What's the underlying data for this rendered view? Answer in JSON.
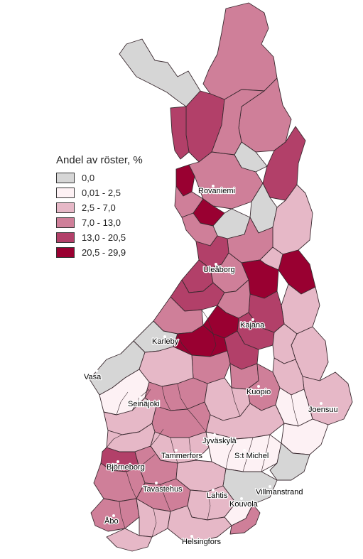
{
  "legend": {
    "title": "Andel av röster, %",
    "classes": [
      {
        "label": "0,0",
        "color": "#d6d6d6"
      },
      {
        "label": "0,01 - 2,5",
        "color": "#fdf1f4"
      },
      {
        "label": "2,5 - 7,0",
        "color": "#e6b8c7"
      },
      {
        "label": "7,0 - 13,0",
        "color": "#cf7f99"
      },
      {
        "label": "13,0 - 20,5",
        "color": "#b24069"
      },
      {
        "label": "20,5 - 29,9",
        "color": "#990031"
      }
    ]
  },
  "cities": [
    {
      "key": "rovaniemi",
      "name": "Rovaniemi"
    },
    {
      "key": "uleaborg",
      "name": "Uleåborg"
    },
    {
      "key": "kajana",
      "name": "Kajana"
    },
    {
      "key": "karleby",
      "name": "Karleby"
    },
    {
      "key": "vasa",
      "name": "Vasa"
    },
    {
      "key": "kuopio",
      "name": "Kuopio"
    },
    {
      "key": "seinajoki",
      "name": "Seinäjoki"
    },
    {
      "key": "joensuu",
      "name": "Joensuu"
    },
    {
      "key": "jyvaskyla",
      "name": "Jyväskylä"
    },
    {
      "key": "tammerfors",
      "name": "Tammerfors"
    },
    {
      "key": "stmichel",
      "name": "S:t Michel"
    },
    {
      "key": "bjorneborg",
      "name": "Björneborg"
    },
    {
      "key": "tavastehus",
      "name": "Tavastehus"
    },
    {
      "key": "lahtis",
      "name": "Lahtis"
    },
    {
      "key": "villmanstrand",
      "name": "Villmanstrand"
    },
    {
      "key": "kouvola",
      "name": "Kouvola"
    },
    {
      "key": "abo",
      "name": "Åbo"
    },
    {
      "key": "helsingfors",
      "name": "Helsingfors"
    }
  ]
}
